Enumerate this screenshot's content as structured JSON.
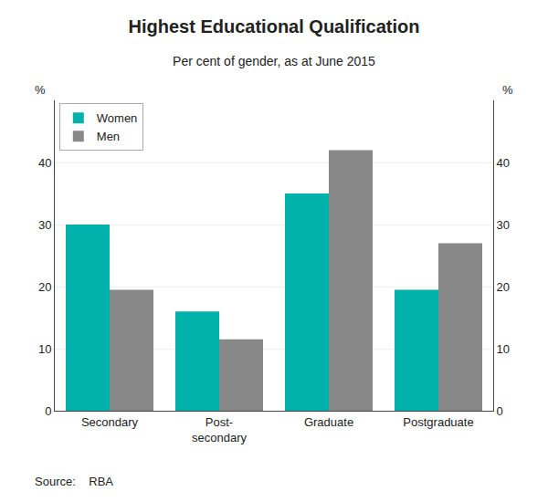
{
  "chart_data": {
    "type": "bar",
    "title": "Highest Educational Qualification",
    "subtitle": "Per cent of gender, as at June 2015",
    "categories": [
      "Secondary",
      "Post-\nsecondary",
      "Graduate",
      "Postgraduate"
    ],
    "series": [
      {
        "name": "Women",
        "color": "#00B2A9",
        "values": [
          30.0,
          16.0,
          35.0,
          19.5
        ]
      },
      {
        "name": "Men",
        "color": "#888888",
        "values": [
          19.5,
          11.5,
          42.0,
          27.0
        ]
      }
    ],
    "ylabel": "%",
    "y2label": "%",
    "ylim": [
      0,
      50
    ],
    "yticks": [
      0,
      10,
      20,
      30,
      40
    ],
    "y2lim": [
      0,
      50
    ],
    "y2ticks": [
      0,
      10,
      20,
      30,
      40
    ],
    "grid": true,
    "legend": "upper left",
    "source": "Source:    RBA"
  }
}
